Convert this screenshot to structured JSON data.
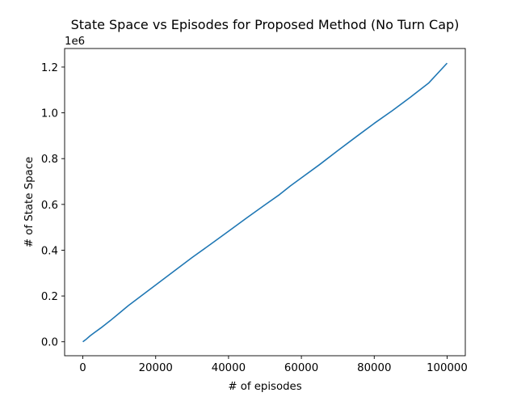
{
  "chart_data": {
    "type": "line",
    "title": "State Space vs Episodes for Proposed Method (No Turn Cap)",
    "xlabel": "# of episodes",
    "ylabel": "# of State Space",
    "offset_text": "1e6",
    "xlim": [
      -5000,
      105000
    ],
    "ylim": [
      -0.061,
      1.281
    ],
    "xticks": [
      0,
      20000,
      40000,
      60000,
      80000,
      100000
    ],
    "xtick_labels": [
      "0",
      "20000",
      "40000",
      "60000",
      "80000",
      "100000"
    ],
    "yticks": [
      0.0,
      0.2,
      0.4,
      0.6,
      0.8,
      1.0,
      1.2
    ],
    "ytick_labels": [
      "0.0",
      "0.2",
      "0.4",
      "0.6",
      "0.8",
      "1.0",
      "1.2"
    ],
    "grid": false,
    "line_color": "#1f77b4",
    "series": [
      {
        "x": [
          0,
          1000,
          2000,
          3000,
          5000,
          7500,
          10000,
          12500,
          15000,
          17500,
          20000,
          25000,
          30000,
          35000,
          40000,
          45000,
          50000,
          54000,
          57000,
          60000,
          65000,
          70000,
          75000,
          80000,
          85000,
          90000,
          95000,
          100000
        ],
        "y": [
          0.0,
          0.012,
          0.026,
          0.038,
          0.061,
          0.092,
          0.125,
          0.158,
          0.188,
          0.218,
          0.248,
          0.308,
          0.368,
          0.425,
          0.483,
          0.541,
          0.598,
          0.643,
          0.681,
          0.716,
          0.774,
          0.835,
          0.895,
          0.954,
          1.01,
          1.069,
          1.131,
          1.217
        ]
      }
    ]
  }
}
